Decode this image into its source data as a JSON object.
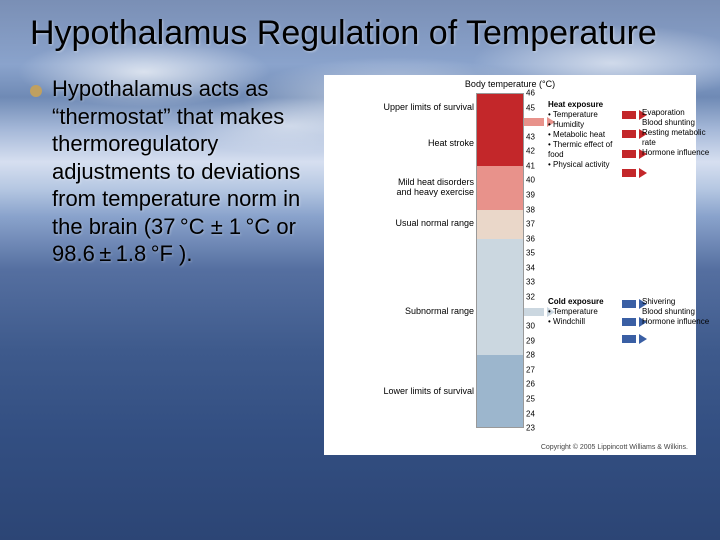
{
  "title": "Hypothalamus Regulation of Temperature",
  "bullet": "Hypothalamus acts as “thermostat” that makes thermoregulatory adjustments to deviations from temperature norm in the brain (37 °C ± 1 °C or 98.6 ± 1.8 °F ).",
  "chart": {
    "topLabel": "Body temperature (°C)",
    "bands": [
      {
        "color": "#c3272a",
        "from": 46,
        "to": 41
      },
      {
        "color": "#e8928b",
        "from": 41,
        "to": 38
      },
      {
        "color": "#ead7c9",
        "from": 38,
        "to": 36
      },
      {
        "color": "#cbd7e0",
        "from": 36,
        "to": 28
      },
      {
        "color": "#9cb6cd",
        "from": 28,
        "to": 23
      }
    ],
    "tickMin": 23,
    "tickMax": 46,
    "leftLabels": [
      {
        "text": "Upper limits of survival",
        "at": 45
      },
      {
        "text": "Heat stroke",
        "at": 42.5
      },
      {
        "text": "Mild heat disorders\nand heavy exercise",
        "at": 39.5
      },
      {
        "text": "Usual normal range",
        "at": 37
      },
      {
        "text": "Subnormal range",
        "at": 31
      },
      {
        "text": "Lower limits of survival",
        "at": 25.5
      }
    ],
    "heat": {
      "arrowColor": "#c3272a",
      "exposure": {
        "title": "Heat exposure",
        "items": [
          "Temperature",
          "Humidity",
          "Metabolic heat",
          "Thermic effect of food",
          "Physical activity"
        ],
        "at": 44
      },
      "responses": [
        "Evaporation",
        "Blood shunting",
        "Resting metabolic rate",
        "Hormone influence"
      ],
      "responseAt": 43.5
    },
    "cold": {
      "arrowColor": "#3a5fa4",
      "exposure": {
        "title": "Cold exposure",
        "items": [
          "Temperature",
          "Windchill"
        ],
        "at": 31
      },
      "responses": [
        "Shivering",
        "Blood shunting",
        "Hormone influence"
      ],
      "responseAt": 31
    },
    "copyright": "Copyright © 2005 Lippincott Williams & Wilkins."
  }
}
